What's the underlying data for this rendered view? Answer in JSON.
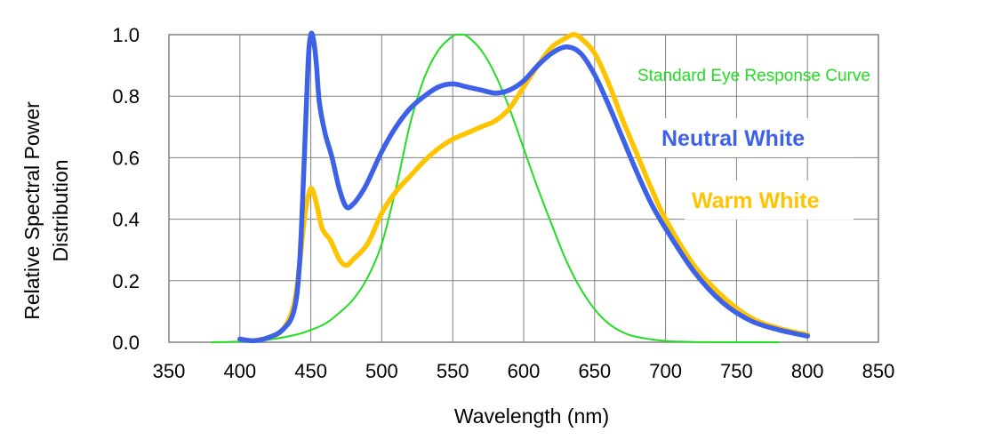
{
  "chart_data": {
    "type": "line",
    "title": "",
    "xlabel": "Wavelength (nm)",
    "ylabel_lines": [
      "Relative Spectral Power",
      "Distribution"
    ],
    "xlim": [
      350,
      850
    ],
    "ylim": [
      0,
      1.0
    ],
    "x_ticks": [
      "350",
      "400",
      "450",
      "500",
      "550",
      "600",
      "650",
      "700",
      "750",
      "800",
      "850"
    ],
    "y_ticks": [
      "0.0",
      "0.2",
      "0.4",
      "0.6",
      "0.8",
      "1.0"
    ],
    "grid": true,
    "series": [
      {
        "name": "Standard Eye Response Curve",
        "color": "#22dd22",
        "x": [
          380,
          400,
          420,
          440,
          450,
          460,
          470,
          480,
          490,
          500,
          510,
          520,
          530,
          540,
          550,
          555,
          560,
          570,
          580,
          590,
          600,
          610,
          620,
          630,
          640,
          650,
          660,
          670,
          680,
          700,
          720,
          740,
          780
        ],
        "y": [
          0.0,
          0.002,
          0.008,
          0.025,
          0.04,
          0.06,
          0.095,
          0.14,
          0.21,
          0.32,
          0.5,
          0.71,
          0.86,
          0.95,
          0.995,
          1.0,
          0.995,
          0.95,
          0.87,
          0.76,
          0.63,
          0.5,
          0.38,
          0.265,
          0.175,
          0.107,
          0.06,
          0.032,
          0.017,
          0.004,
          0.001,
          0.0,
          0.0
        ]
      },
      {
        "name": "Neutral White",
        "color": "#3d62e8",
        "x": [
          400,
          410,
          420,
          430,
          438,
          442,
          445,
          448,
          450,
          452,
          454,
          456,
          460,
          465,
          470,
          475,
          480,
          485,
          490,
          500,
          510,
          520,
          530,
          540,
          550,
          560,
          570,
          580,
          590,
          600,
          610,
          620,
          630,
          640,
          650,
          660,
          670,
          680,
          690,
          700,
          720,
          740,
          760,
          780,
          800
        ],
        "y": [
          0.01,
          0.005,
          0.015,
          0.04,
          0.1,
          0.25,
          0.55,
          0.9,
          1.0,
          0.98,
          0.9,
          0.78,
          0.68,
          0.6,
          0.5,
          0.44,
          0.45,
          0.48,
          0.52,
          0.62,
          0.7,
          0.76,
          0.8,
          0.83,
          0.84,
          0.83,
          0.82,
          0.81,
          0.82,
          0.85,
          0.9,
          0.94,
          0.96,
          0.94,
          0.87,
          0.77,
          0.66,
          0.55,
          0.45,
          0.37,
          0.23,
          0.13,
          0.07,
          0.04,
          0.02
        ]
      },
      {
        "name": "Warm White",
        "color": "#ffc400",
        "x": [
          410,
          420,
          430,
          438,
          442,
          446,
          450,
          454,
          458,
          464,
          470,
          475,
          480,
          490,
          500,
          510,
          520,
          530,
          540,
          550,
          560,
          570,
          580,
          590,
          600,
          610,
          620,
          630,
          635,
          640,
          650,
          660,
          670,
          680,
          690,
          700,
          720,
          740,
          760,
          780,
          800
        ],
        "y": [
          0.005,
          0.015,
          0.04,
          0.12,
          0.25,
          0.42,
          0.5,
          0.45,
          0.37,
          0.33,
          0.27,
          0.25,
          0.27,
          0.32,
          0.42,
          0.49,
          0.54,
          0.59,
          0.63,
          0.66,
          0.68,
          0.7,
          0.72,
          0.76,
          0.83,
          0.9,
          0.96,
          0.99,
          1.0,
          0.99,
          0.94,
          0.84,
          0.72,
          0.61,
          0.5,
          0.4,
          0.25,
          0.15,
          0.08,
          0.045,
          0.025
        ]
      }
    ],
    "annotations": [
      {
        "text": "Standard Eye Response Curve",
        "color": "#22dd22"
      },
      {
        "text": "Neutral White",
        "color": "#3d62e8"
      },
      {
        "text": "Warm White",
        "color": "#ffc400"
      }
    ]
  }
}
